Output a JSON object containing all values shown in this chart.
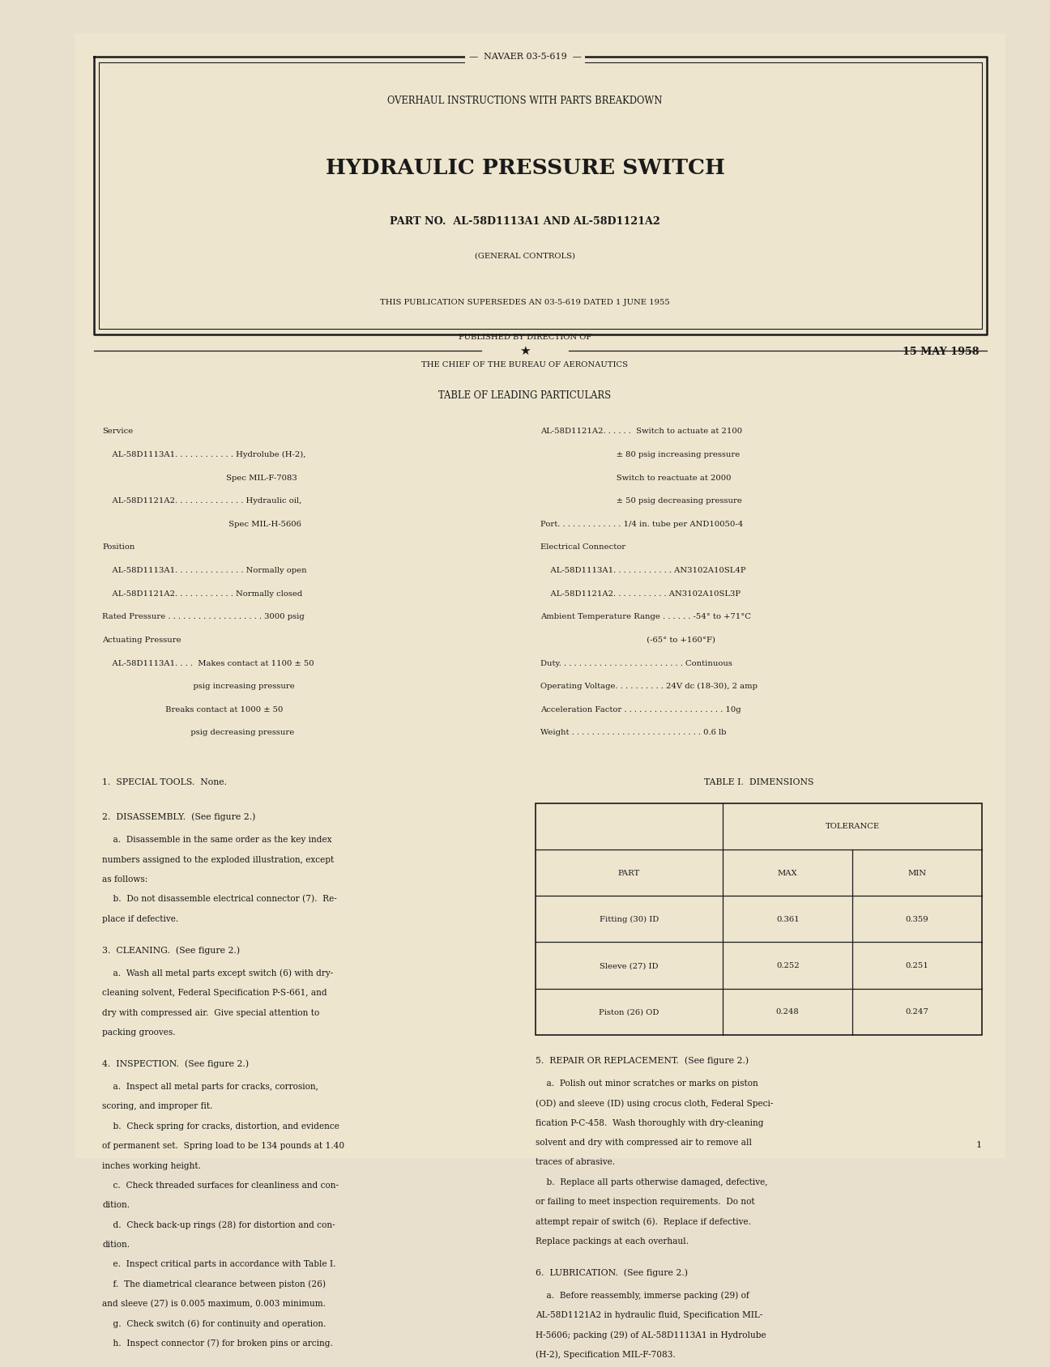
{
  "bg_color": "#e8e0cc",
  "page_color": "#ede5ce",
  "border_color": "#1a1a1a",
  "text_color": "#1a1a1a",
  "header_doc_num": "NAVAER 03-5-619",
  "header_subtitle": "OVERHAUL INSTRUCTIONS WITH PARTS BREAKDOWN",
  "header_title": "HYDRAULIC PRESSURE SWITCH",
  "header_partno": "PART NO.  AL-58D1113A1 AND AL-58D1121A2",
  "header_company": "(GENERAL CONTROLS)",
  "header_supersedes": "THIS PUBLICATION SUPERSEDES AN 03-5-619 DATED 1 JUNE 1955",
  "header_published1": "PUBLISHED BY DIRECTION OF",
  "header_published2": "THE CHIEF OF THE BUREAU OF AERONAUTICS",
  "header_date": "15 MAY 1958",
  "section_leading": "TABLE OF LEADING PARTICULARS",
  "left_col": [
    "Service",
    "    AL-58D1113A1. . . . . . . . . . . . Hydrolube (H-2),",
    "                                                 Spec MIL-F-7083",
    "    AL-58D1121A2. . . . . . . . . . . . . . Hydraulic oil,",
    "                                                  Spec MIL-H-5606",
    "Position",
    "    AL-58D1113A1. . . . . . . . . . . . . . Normally open",
    "    AL-58D1121A2. . . . . . . . . . . . Normally closed",
    "Rated Pressure . . . . . . . . . . . . . . . . . . . 3000 psig",
    "Actuating Pressure",
    "    AL-58D1113A1. . . .  Makes contact at 1100 ± 50",
    "                                    psig increasing pressure",
    "                         Breaks contact at 1000 ± 50",
    "                                   psig decreasing pressure"
  ],
  "right_col": [
    "AL-58D1121A2. . . . . .  Switch to actuate at 2100",
    "                              ± 80 psig increasing pressure",
    "                              Switch to reactuate at 2000",
    "                              ± 50 psig decreasing pressure",
    "Port. . . . . . . . . . . . . 1/4 in. tube per AND10050-4",
    "Electrical Connector",
    "    AL-58D1113A1. . . . . . . . . . . . AN3102A10SL4P",
    "    AL-58D1121A2. . . . . . . . . . . AN3102A10SL3P",
    "Ambient Temperature Range . . . . . . -54° to +71°C",
    "                                          (-65° to +160°F)",
    "Duty. . . . . . . . . . . . . . . . . . . . . . . . . Continuous",
    "Operating Voltage. . . . . . . . . . 24V dc (18-30), 2 amp",
    "Acceleration Factor . . . . . . . . . . . . . . . . . . . . 10g",
    "Weight . . . . . . . . . . . . . . . . . . . . . . . . . . 0.6 lb"
  ],
  "section1_title": "1.  SPECIAL TOOLS.  None.",
  "section1_text": "",
  "section2_title": "2.  DISASSEMBLY.  (See figure 2.)",
  "section2_text": "    a.  Disassemble in the same order as the key index\nnumbers assigned to the exploded illustration, except\nas follows:\n    b.  Do not disassemble electrical connector (7).  Re-\nplace if defective.",
  "section3_title": "3.  CLEANING.  (See figure 2.)",
  "section3_text": "    a.  Wash all metal parts except switch (6) with dry-\ncleaning solvent, Federal Specification P-S-661, and\ndry with compressed air.  Give special attention to\npacking grooves.",
  "section4_title": "4.  INSPECTION.  (See figure 2.)",
  "section4_text": "    a.  Inspect all metal parts for cracks, corrosion,\nscoring, and improper fit.\n    b.  Check spring for cracks, distortion, and evidence\nof permanent set.  Spring load to be 134 pounds at 1.40\ninches working height.\n    c.  Check threaded surfaces for cleanliness and con-\ndition.\n    d.  Check back-up rings (28) for distortion and con-\ndition.\n    e.  Inspect critical parts in accordance with Table I.\n    f.  The diametrical clearance between piston (26)\nand sleeve (27) is 0.005 maximum, 0.003 minimum.\n    g.  Check switch (6) for continuity and operation.\n    h.  Inspect connector (7) for broken pins or arcing.",
  "table_title": "TABLE I.  DIMENSIONS",
  "table_headers": [
    "PART",
    "MAX",
    "MIN"
  ],
  "table_col_header2": "TOLERANCE",
  "table_rows": [
    [
      "Fitting (30) ID",
      "0.361",
      "0.359"
    ],
    [
      "Sleeve (27) ID",
      "0.252",
      "0.251"
    ],
    [
      "Piston (26) OD",
      "0.248",
      "0.247"
    ]
  ],
  "section5_title": "5.  REPAIR OR REPLACEMENT.  (See figure 2.)",
  "section5_text": "    a.  Polish out minor scratches or marks on piston\n(OD) and sleeve (ID) using crocus cloth, Federal Speci-\nfication P-C-458.  Wash thoroughly with dry-cleaning\nsolvent and dry with compressed air to remove all\ntraces of abrasive.\n    b.  Replace all parts otherwise damaged, defective,\nor failing to meet inspection requirements.  Do not\nattempt repair of switch (6).  Replace if defective.\nReplace packings at each overhaul.",
  "section6_title": "6.  LUBRICATION.  (See figure 2.)",
  "section6_text": "    a.  Before reassembly, immerse packing (29) of\nAL-58D1121A2 in hydraulic fluid, Specification MIL-\nH-5606; packing (29) of AL-58D1113A1 in Hydrolube\n(H-2), Specification MIL-F-7083.",
  "page_num": "1"
}
